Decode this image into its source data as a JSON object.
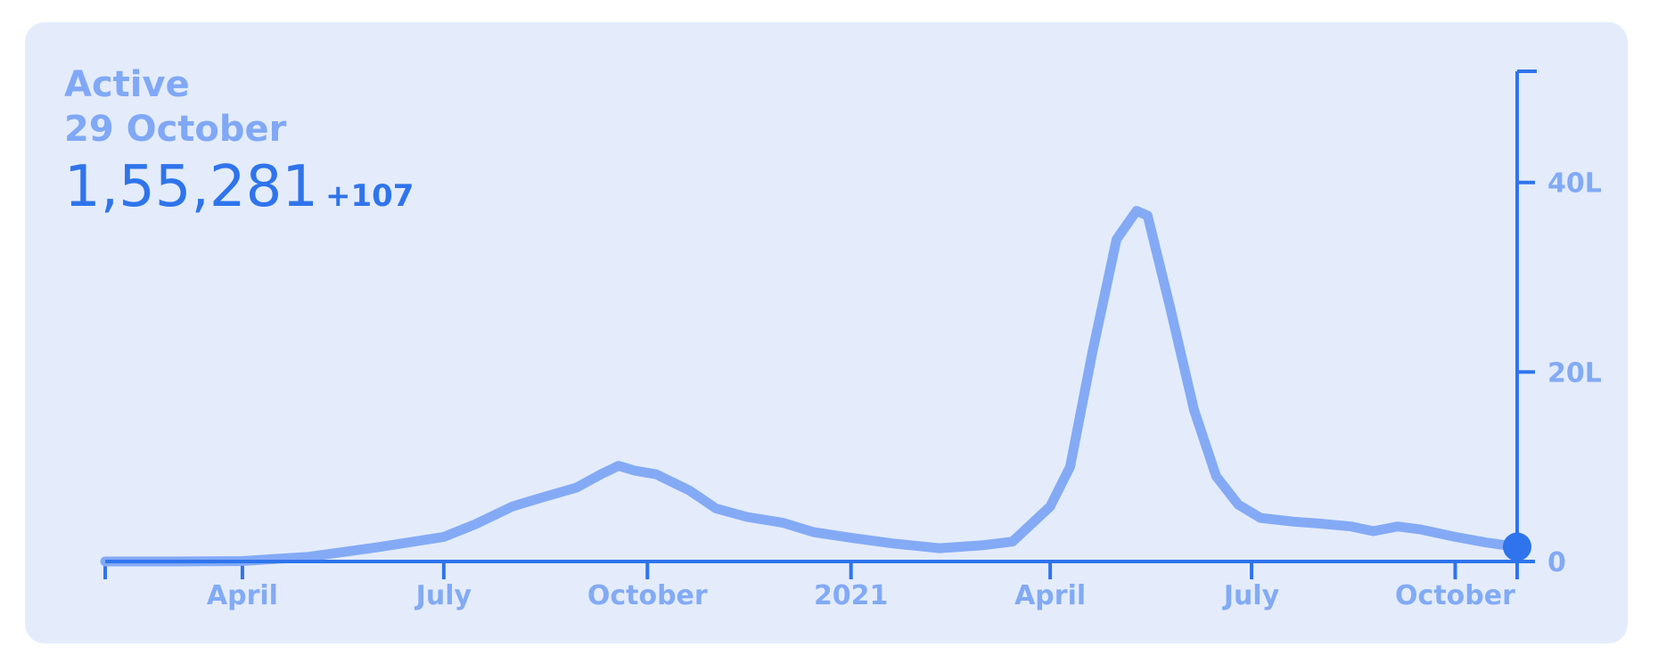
{
  "header": {
    "label": "Active",
    "date": "29 October",
    "value": "1,55,281",
    "delta": "+107"
  },
  "colors": {
    "background": "#e4ecfb",
    "accent": "#2f74ec",
    "line": "#84aaf6",
    "label": "#82aaf5"
  },
  "chart_data": {
    "type": "line",
    "title": "",
    "xlabel": "",
    "ylabel": "",
    "x_ticks": [
      {
        "date": "2020-04-01",
        "label": "April"
      },
      {
        "date": "2020-07-01",
        "label": "July"
      },
      {
        "date": "2020-10-01",
        "label": "October"
      },
      {
        "date": "2021-01-01",
        "label": "2021"
      },
      {
        "date": "2021-04-01",
        "label": "April"
      },
      {
        "date": "2021-07-01",
        "label": "July"
      },
      {
        "date": "2021-10-01",
        "label": "October"
      }
    ],
    "xlim": [
      "2020-01-30",
      "2021-10-29"
    ],
    "y_ticks": [
      {
        "value": 0,
        "label": "0"
      },
      {
        "value": 2000000,
        "label": "20L"
      },
      {
        "value": 4000000,
        "label": "40L"
      }
    ],
    "ylim": [
      0,
      5700000
    ],
    "grid": false,
    "series": [
      {
        "points": [
          [
            "2020-01-30",
            0
          ],
          [
            "2020-03-01",
            0
          ],
          [
            "2020-04-01",
            5000
          ],
          [
            "2020-05-01",
            50000
          ],
          [
            "2020-06-01",
            150000
          ],
          [
            "2020-07-01",
            260000
          ],
          [
            "2020-07-15",
            390000
          ],
          [
            "2020-08-01",
            580000
          ],
          [
            "2020-08-15",
            680000
          ],
          [
            "2020-08-30",
            780000
          ],
          [
            "2020-09-10",
            920000
          ],
          [
            "2020-09-18",
            1010000
          ],
          [
            "2020-09-25",
            960000
          ],
          [
            "2020-10-05",
            920000
          ],
          [
            "2020-10-20",
            750000
          ],
          [
            "2020-11-01",
            560000
          ],
          [
            "2020-11-15",
            470000
          ],
          [
            "2020-12-01",
            410000
          ],
          [
            "2020-12-15",
            310000
          ],
          [
            "2021-01-01",
            250000
          ],
          [
            "2021-01-20",
            190000
          ],
          [
            "2021-02-10",
            140000
          ],
          [
            "2021-03-01",
            170000
          ],
          [
            "2021-03-15",
            210000
          ],
          [
            "2021-04-01",
            580000
          ],
          [
            "2021-04-10",
            1000000
          ],
          [
            "2021-04-20",
            2200000
          ],
          [
            "2021-05-01",
            3400000
          ],
          [
            "2021-05-10",
            3700000
          ],
          [
            "2021-05-15",
            3650000
          ],
          [
            "2021-05-25",
            2700000
          ],
          [
            "2021-06-05",
            1600000
          ],
          [
            "2021-06-15",
            900000
          ],
          [
            "2021-06-25",
            600000
          ],
          [
            "2021-07-05",
            460000
          ],
          [
            "2021-07-20",
            420000
          ],
          [
            "2021-08-01",
            400000
          ],
          [
            "2021-08-15",
            370000
          ],
          [
            "2021-08-25",
            320000
          ],
          [
            "2021-09-05",
            370000
          ],
          [
            "2021-09-15",
            340000
          ],
          [
            "2021-10-01",
            260000
          ],
          [
            "2021-10-15",
            200000
          ],
          [
            "2021-10-29",
            155281
          ]
        ]
      }
    ],
    "marker": {
      "date": "2021-10-29",
      "value": 155281
    }
  }
}
